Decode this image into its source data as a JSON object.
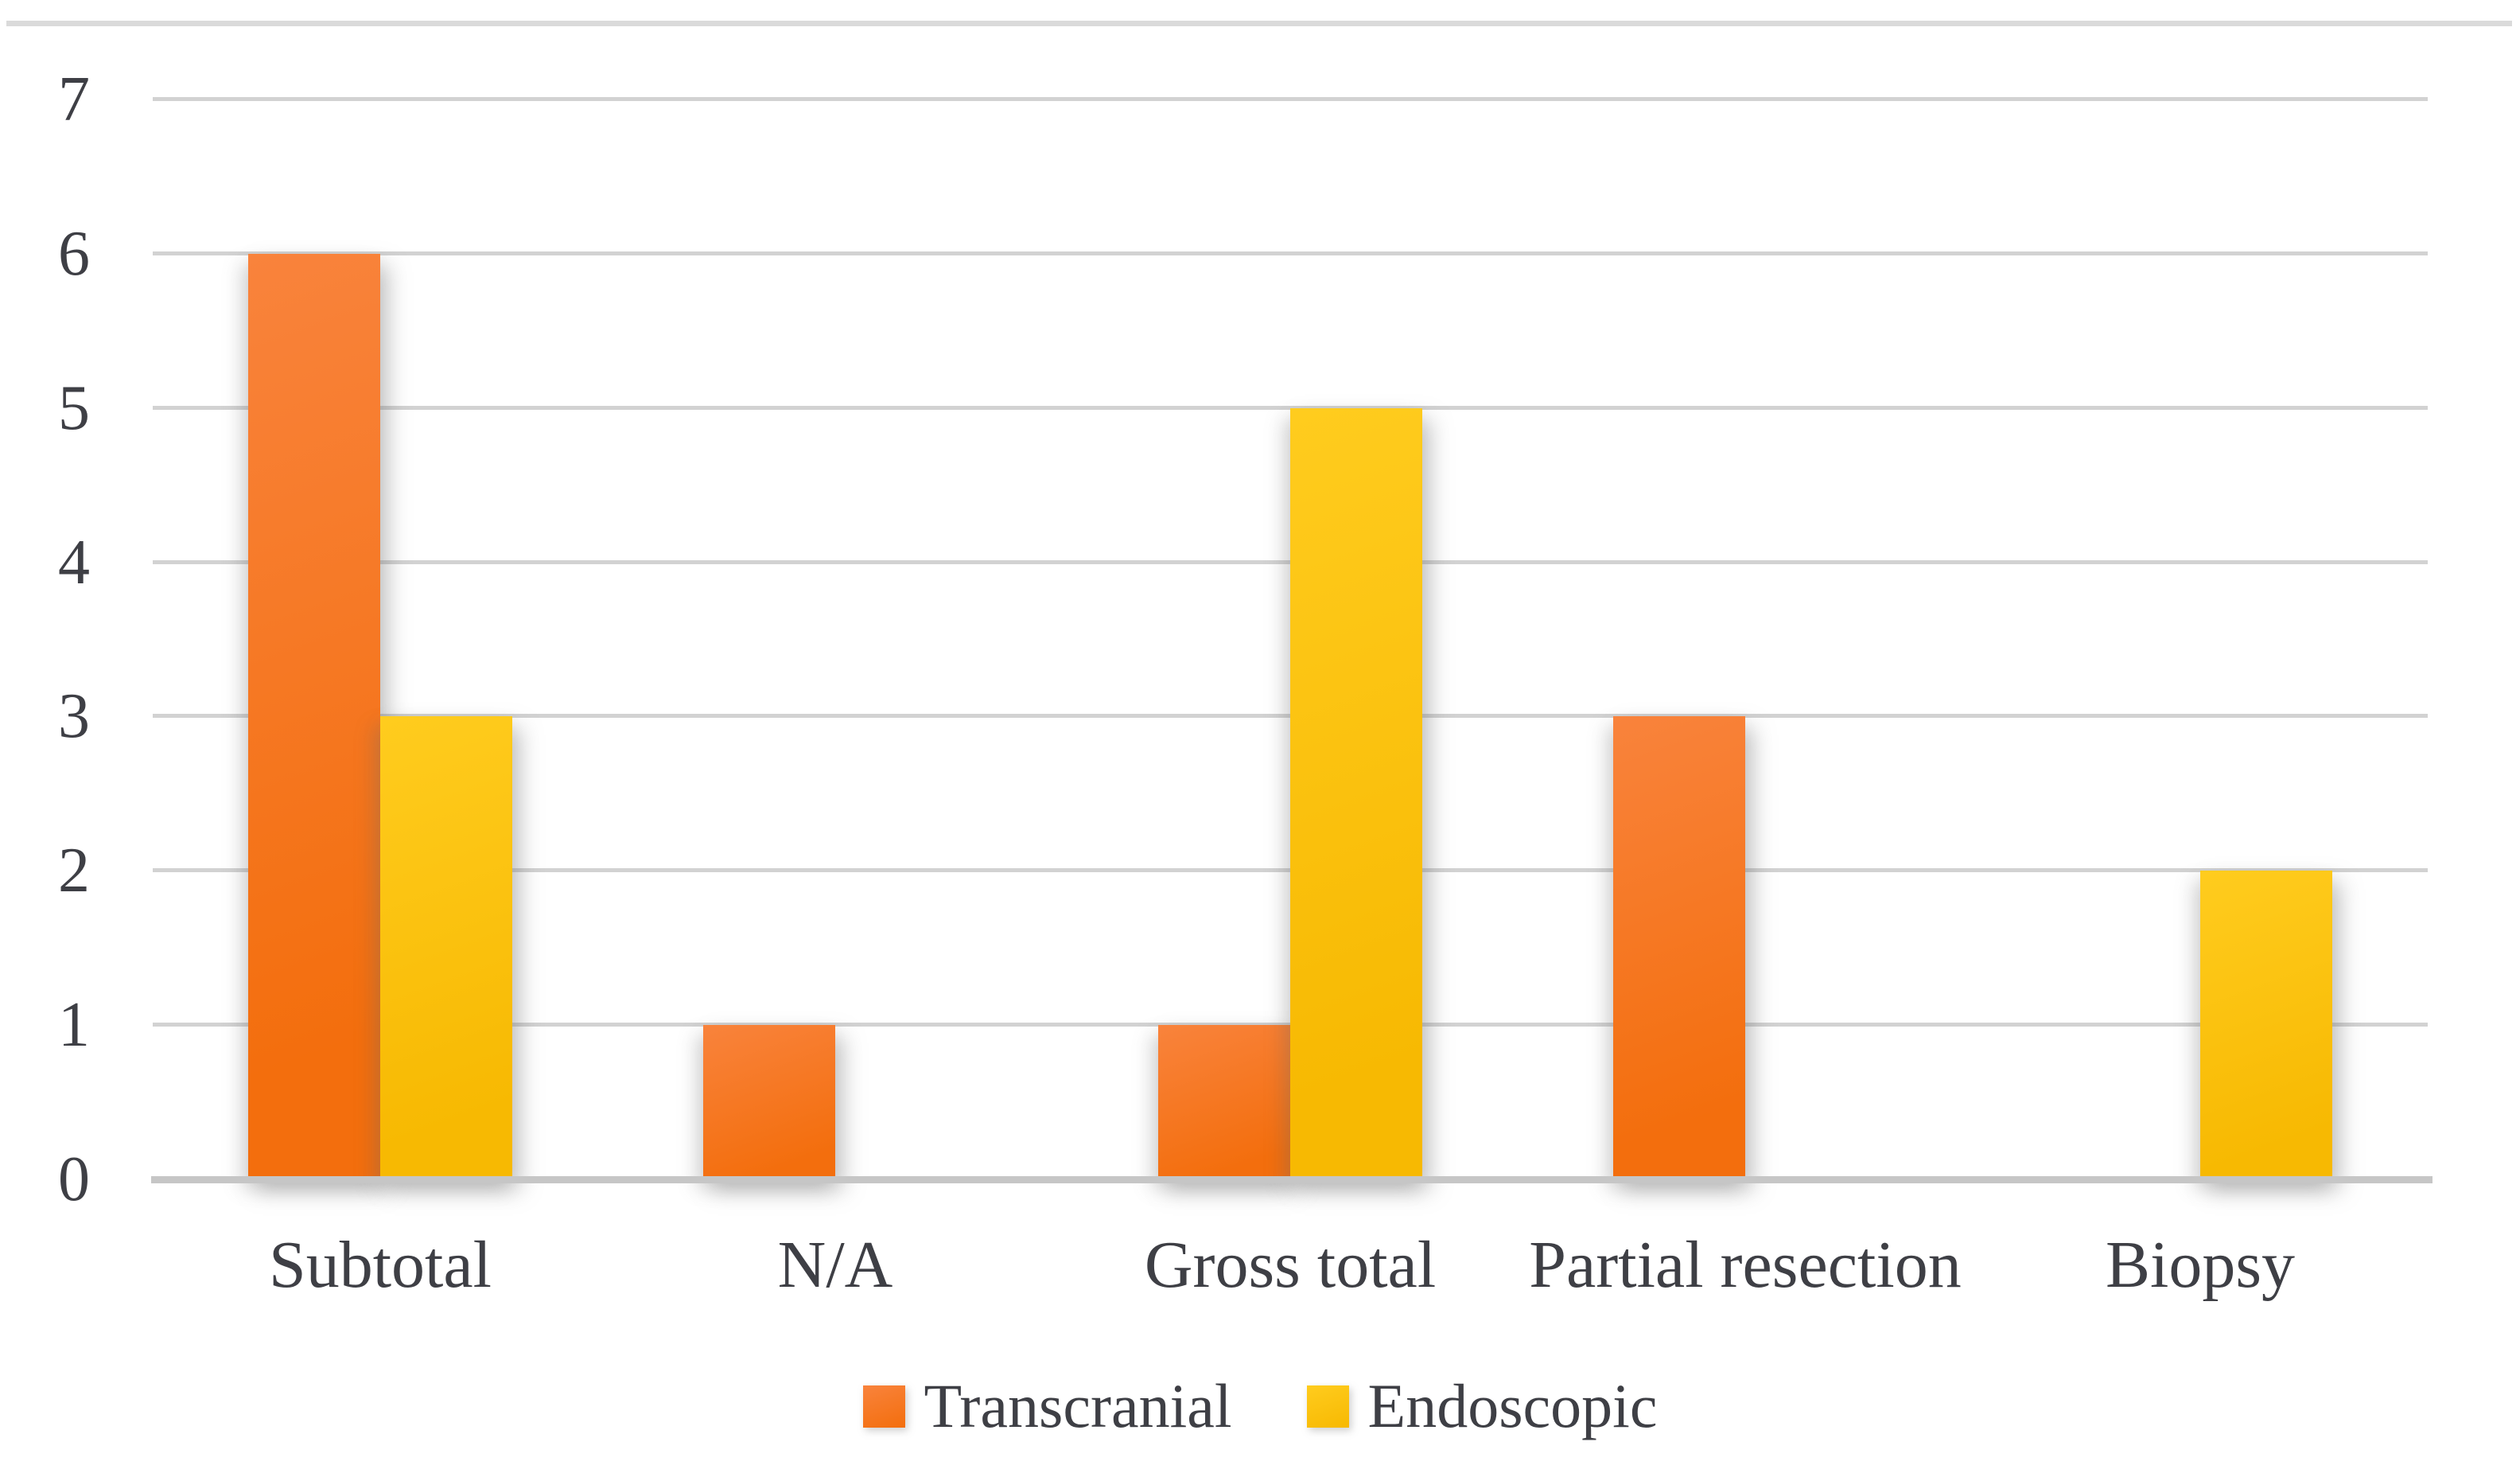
{
  "chart_data": {
    "type": "bar",
    "title": "",
    "xlabel": "",
    "ylabel": "",
    "categories": [
      "Subtotal",
      "N/A",
      "Gross total",
      "Partial resection",
      "Biopsy"
    ],
    "series": [
      {
        "name": "Transcranial",
        "color": "#F4731E",
        "color_light": "#F9833C",
        "color_dark": "#F36E0D",
        "values": [
          6,
          1,
          1,
          3,
          0
        ]
      },
      {
        "name": "Endoscopic",
        "color": "#FFC30B",
        "color_light": "#FFCC1E",
        "color_dark": "#F7B902",
        "values": [
          3,
          0,
          5,
          0,
          2
        ]
      }
    ],
    "ylim": [
      0,
      7
    ],
    "yticks": [
      0,
      1,
      2,
      3,
      4,
      5,
      6,
      7
    ],
    "grid": "horizontal",
    "legend_position": "bottom"
  },
  "styles": {
    "background": "#FFFFFF",
    "gridline_color": "#D2D2D2",
    "axis_line_color": "#C6C6C6",
    "top_border_color": "#DADADA",
    "text_color": "#3E3F45"
  }
}
